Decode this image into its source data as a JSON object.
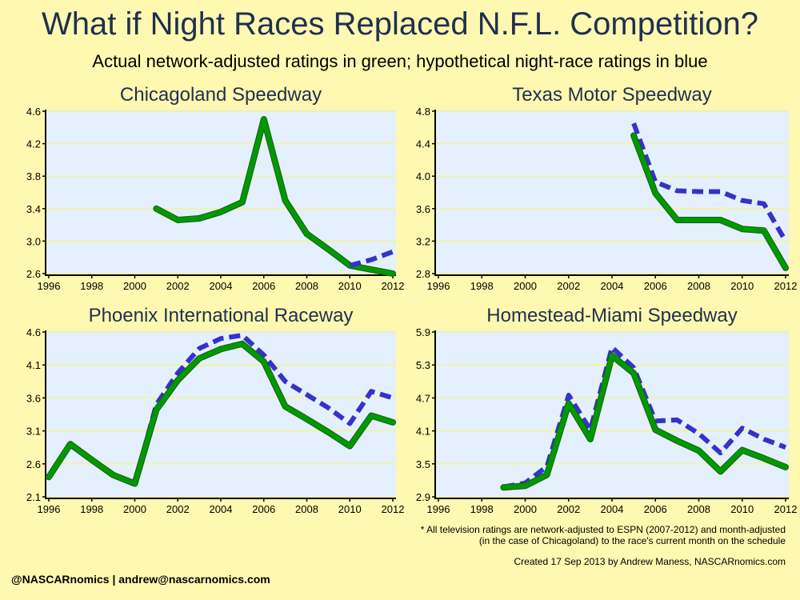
{
  "title": "What if Night Races Replaced N.F.L. Competition?",
  "subtitle": "Actual network-adjusted ratings in green; hypothetical night-race ratings in blue",
  "footnote": {
    "line1": "* All television ratings are network-adjusted to ESPN (2007-2012) and month-adjusted",
    "line2": "(in the case of Chicagoland) to the race's current month on the schedule"
  },
  "created": "Created 17 Sep 2013 by Andrew Maness, NASCARnomics.com",
  "contact": "@NASCARnomics | andrew@nascarnomics.com",
  "colors": {
    "page_background": "#fff8b0",
    "plot_background": "#e4f0fd",
    "grid": "#f2f2a8",
    "actual": "#009900",
    "hypothetical": "#3333cc"
  },
  "chart_data": [
    {
      "type": "line",
      "title": "Chicagoland Speedway",
      "xlim": [
        1996,
        2012
      ],
      "xticks": [
        1996,
        1998,
        2000,
        2002,
        2004,
        2006,
        2008,
        2010,
        2012
      ],
      "ylim": [
        2.6,
        4.6
      ],
      "yticks": [
        "2.6",
        "3.0",
        "3.4",
        "3.8",
        "4.2",
        "4.6"
      ],
      "series": [
        {
          "role": "actual",
          "x": [
            2001,
            2002,
            2003,
            2004,
            2005,
            2006,
            2007,
            2008,
            2009,
            2010,
            2011,
            2012
          ],
          "y": [
            3.4,
            3.26,
            3.28,
            3.36,
            3.48,
            4.5,
            3.5,
            3.09,
            2.9,
            2.7,
            2.65,
            2.6
          ]
        },
        {
          "role": "hypothetical",
          "x": [
            2010,
            2011,
            2012
          ],
          "y": [
            2.7,
            2.77,
            2.87
          ]
        }
      ]
    },
    {
      "type": "line",
      "title": "Texas Motor Speedway",
      "xlim": [
        1996,
        2012
      ],
      "xticks": [
        1996,
        1998,
        2000,
        2002,
        2004,
        2006,
        2008,
        2010,
        2012
      ],
      "ylim": [
        2.8,
        4.8
      ],
      "yticks": [
        "2.8",
        "3.2",
        "3.6",
        "4.0",
        "4.4",
        "4.8"
      ],
      "series": [
        {
          "role": "hypothetical",
          "x": [
            2005,
            2006,
            2007,
            2008,
            2009,
            2010,
            2011,
            2012
          ],
          "y": [
            4.65,
            3.93,
            3.82,
            3.81,
            3.81,
            3.7,
            3.66,
            3.2
          ]
        },
        {
          "role": "actual",
          "x": [
            2005,
            2006,
            2007,
            2008,
            2009,
            2010,
            2011,
            2012
          ],
          "y": [
            4.5,
            3.79,
            3.46,
            3.46,
            3.46,
            3.35,
            3.33,
            2.87
          ]
        }
      ]
    },
    {
      "type": "line",
      "title": "Phoenix International Raceway",
      "xlim": [
        1996,
        2012
      ],
      "xticks": [
        1996,
        1998,
        2000,
        2002,
        2004,
        2006,
        2008,
        2010,
        2012
      ],
      "ylim": [
        2.1,
        4.6
      ],
      "yticks": [
        "2.1",
        "2.6",
        "3.1",
        "3.6",
        "4.1",
        "4.6"
      ],
      "series": [
        {
          "role": "hypothetical",
          "x": [
            2000,
            2001,
            2002,
            2003,
            2004,
            2005,
            2006,
            2007,
            2008,
            2009,
            2010,
            2011,
            2012
          ],
          "y": [
            2.3,
            3.5,
            3.98,
            4.35,
            4.5,
            4.55,
            4.25,
            3.85,
            3.65,
            3.45,
            3.21,
            3.7,
            3.6
          ]
        },
        {
          "role": "actual",
          "x": [
            1996,
            1997,
            1998,
            1999,
            2000,
            2001,
            2002,
            2003,
            2004,
            2005,
            2006,
            2007,
            2008,
            2009,
            2010,
            2011,
            2012
          ],
          "y": [
            2.4,
            2.9,
            2.66,
            2.43,
            2.3,
            3.42,
            3.87,
            4.2,
            4.34,
            4.42,
            4.15,
            3.47,
            3.28,
            3.08,
            2.87,
            3.33,
            3.23
          ]
        }
      ]
    },
    {
      "type": "line",
      "title": "Homestead-Miami Speedway",
      "xlim": [
        1996,
        2012
      ],
      "xticks": [
        1996,
        1998,
        2000,
        2002,
        2004,
        2006,
        2008,
        2010,
        2012
      ],
      "ylim": [
        2.9,
        5.9
      ],
      "yticks": [
        "2.9",
        "3.5",
        "4.1",
        "4.7",
        "5.3",
        "5.9"
      ],
      "series": [
        {
          "role": "hypothetical",
          "x": [
            1999,
            2000,
            2001,
            2002,
            2003,
            2004,
            2005,
            2006,
            2007,
            2008,
            2009,
            2010,
            2011,
            2012
          ],
          "y": [
            3.08,
            3.15,
            3.45,
            4.75,
            4.12,
            5.62,
            5.25,
            4.28,
            4.3,
            4.05,
            3.7,
            4.15,
            3.95,
            3.8
          ]
        },
        {
          "role": "actual",
          "x": [
            1999,
            2000,
            2001,
            2002,
            2003,
            2004,
            2005,
            2006,
            2007,
            2008,
            2009,
            2010,
            2011,
            2012
          ],
          "y": [
            3.07,
            3.1,
            3.3,
            4.6,
            3.95,
            5.47,
            5.15,
            4.12,
            3.92,
            3.74,
            3.36,
            3.75,
            3.6,
            3.44
          ]
        }
      ]
    }
  ]
}
